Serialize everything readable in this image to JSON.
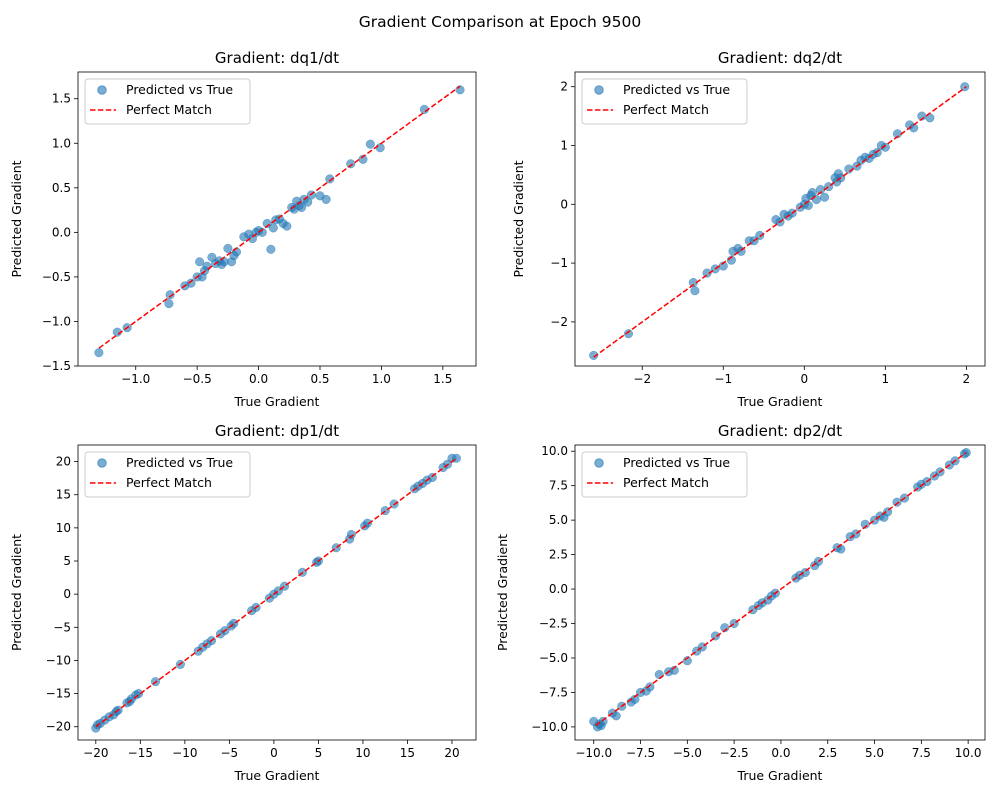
{
  "figure": {
    "suptitle": "Gradient Comparison at Epoch 9500"
  },
  "colors": {
    "points": "#1f77b4",
    "line": "#ff0000"
  },
  "chart_data": [
    {
      "type": "scatter",
      "title": "Gradient: dq1/dt",
      "xlabel": "True Gradient",
      "ylabel": "Predicted Gradient",
      "xlim": [
        -1.47,
        1.77
      ],
      "ylim": [
        -1.5,
        1.8
      ],
      "xticks": [
        -1.0,
        -0.5,
        0.0,
        0.5,
        1.0,
        1.5
      ],
      "xtick_labels": [
        "−1.0",
        "−0.5",
        "0.0",
        "0.5",
        "1.0",
        "1.5"
      ],
      "yticks": [
        -1.5,
        -1.0,
        -0.5,
        0.0,
        0.5,
        1.0,
        1.5
      ],
      "ytick_labels": [
        "−1.5",
        "−1.0",
        "−0.5",
        "0.0",
        "0.5",
        "1.0",
        "1.5"
      ],
      "legend": [
        "Predicted vs True",
        "Perfect Match"
      ],
      "legend_position": "upper-left",
      "line": {
        "x": [
          -1.3,
          1.64
        ],
        "y": [
          -1.3,
          1.64
        ]
      },
      "x": [
        -1.3,
        -1.15,
        -1.07,
        -0.73,
        -0.72,
        -0.6,
        -0.55,
        -0.5,
        -0.48,
        -0.46,
        -0.44,
        -0.42,
        -0.38,
        -0.35,
        -0.32,
        -0.3,
        -0.28,
        -0.25,
        -0.22,
        -0.2,
        -0.18,
        -0.12,
        -0.08,
        -0.05,
        -0.02,
        0.0,
        0.03,
        0.07,
        0.1,
        0.12,
        0.14,
        0.17,
        0.2,
        0.23,
        0.27,
        0.29,
        0.31,
        0.33,
        0.35,
        0.37,
        0.4,
        0.43,
        0.5,
        0.55,
        0.58,
        0.75,
        0.85,
        0.91,
        0.99,
        1.35,
        1.64
      ],
      "y": [
        -1.35,
        -1.12,
        -1.07,
        -0.8,
        -0.7,
        -0.6,
        -0.57,
        -0.5,
        -0.33,
        -0.5,
        -0.43,
        -0.38,
        -0.28,
        -0.35,
        -0.32,
        -0.36,
        -0.33,
        -0.18,
        -0.33,
        -0.26,
        -0.22,
        -0.05,
        -0.02,
        -0.07,
        0.0,
        0.02,
        0.0,
        0.1,
        -0.19,
        0.05,
        0.14,
        0.15,
        0.1,
        0.07,
        0.28,
        0.26,
        0.35,
        0.3,
        0.28,
        0.37,
        0.34,
        0.42,
        0.41,
        0.37,
        0.6,
        0.77,
        0.82,
        0.99,
        0.95,
        1.38,
        1.6
      ]
    },
    {
      "type": "scatter",
      "title": "Gradient: dq2/dt",
      "xlabel": "True Gradient",
      "ylabel": "Predicted Gradient",
      "xlim": [
        -2.83,
        2.23
      ],
      "ylim": [
        -2.75,
        2.25
      ],
      "xticks": [
        -2,
        -1,
        0,
        1,
        2
      ],
      "xtick_labels": [
        "−2",
        "−1",
        "0",
        "1",
        "2"
      ],
      "yticks": [
        -2,
        -1,
        0,
        1,
        2
      ],
      "ytick_labels": [
        "−2",
        "−1",
        "0",
        "1",
        "2"
      ],
      "legend": [
        "Predicted vs True",
        "Perfect Match"
      ],
      "legend_position": "upper-left",
      "line": {
        "x": [
          -2.6,
          2.0
        ],
        "y": [
          -2.6,
          2.0
        ]
      },
      "x": [
        -2.6,
        -2.17,
        -1.37,
        -1.35,
        -1.2,
        -1.1,
        -1.0,
        -0.9,
        -0.88,
        -0.82,
        -0.78,
        -0.68,
        -0.62,
        -0.55,
        -0.35,
        -0.3,
        -0.25,
        -0.2,
        -0.15,
        -0.05,
        0.0,
        0.02,
        0.05,
        0.08,
        0.1,
        0.15,
        0.2,
        0.25,
        0.3,
        0.38,
        0.4,
        0.42,
        0.45,
        0.55,
        0.65,
        0.7,
        0.75,
        0.8,
        0.85,
        0.9,
        0.95,
        1.0,
        1.15,
        1.3,
        1.35,
        1.45,
        1.55,
        1.98
      ],
      "y": [
        -2.57,
        -2.2,
        -1.33,
        -1.47,
        -1.17,
        -1.1,
        -1.05,
        -0.95,
        -0.8,
        -0.75,
        -0.8,
        -0.62,
        -0.62,
        -0.53,
        -0.26,
        -0.3,
        -0.17,
        -0.2,
        -0.15,
        -0.05,
        0.0,
        0.1,
        -0.02,
        0.15,
        0.2,
        0.08,
        0.25,
        0.12,
        0.3,
        0.45,
        0.38,
        0.52,
        0.45,
        0.6,
        0.65,
        0.75,
        0.8,
        0.78,
        0.85,
        0.88,
        1.0,
        0.97,
        1.2,
        1.35,
        1.3,
        1.5,
        1.47,
        2.0
      ]
    },
    {
      "type": "scatter",
      "title": "Gradient: dp1/dt",
      "xlabel": "True Gradient",
      "ylabel": "Predicted Gradient",
      "xlim": [
        -22.0,
        22.7
      ],
      "ylim": [
        -22.0,
        22.5
      ],
      "xticks": [
        -20,
        -15,
        -10,
        -5,
        0,
        5,
        10,
        15,
        20
      ],
      "xtick_labels": [
        "−20",
        "−15",
        "−10",
        "−5",
        "0",
        "5",
        "10",
        "15",
        "20"
      ],
      "yticks": [
        -20,
        -15,
        -10,
        -5,
        0,
        5,
        10,
        15,
        20
      ],
      "ytick_labels": [
        "−20",
        "−15",
        "−10",
        "−5",
        "0",
        "5",
        "10",
        "15",
        "20"
      ],
      "legend": [
        "Predicted vs True",
        "Perfect Match"
      ],
      "legend_position": "upper-left",
      "line": {
        "x": [
          -20.0,
          20.5
        ],
        "y": [
          -20.0,
          20.5
        ]
      },
      "x": [
        -20.0,
        -19.8,
        -19.5,
        -19.0,
        -18.5,
        -18.0,
        -17.7,
        -17.5,
        -16.5,
        -16.2,
        -16.0,
        -15.5,
        -15.2,
        -13.3,
        -10.5,
        -8.5,
        -8.0,
        -7.5,
        -7.0,
        -6.0,
        -5.5,
        -4.8,
        -4.5,
        -2.5,
        -2.0,
        -0.5,
        0.0,
        0.5,
        1.2,
        3.2,
        4.8,
        5.0,
        7.0,
        8.5,
        8.7,
        10.2,
        10.5,
        12.5,
        13.5,
        15.8,
        16.2,
        16.7,
        17.2,
        17.8,
        19.0,
        19.5,
        20.0,
        20.5
      ],
      "y": [
        -20.2,
        -19.7,
        -19.5,
        -19.0,
        -18.5,
        -18.2,
        -17.7,
        -17.5,
        -16.4,
        -16.2,
        -15.8,
        -15.2,
        -15.0,
        -13.2,
        -10.6,
        -8.6,
        -8.0,
        -7.5,
        -7.0,
        -6.0,
        -5.5,
        -4.8,
        -4.4,
        -2.5,
        -2.0,
        -0.6,
        0.0,
        0.5,
        1.2,
        3.3,
        4.8,
        5.0,
        7.0,
        8.3,
        9.0,
        10.3,
        10.7,
        12.6,
        13.6,
        15.9,
        16.3,
        16.7,
        17.2,
        17.6,
        19.1,
        19.6,
        20.5,
        20.5
      ]
    },
    {
      "type": "scatter",
      "title": "Gradient: dp2/dt",
      "xlabel": "True Gradient",
      "ylabel": "Predicted Gradient",
      "xlim": [
        -11.0,
        10.9
      ],
      "ylim": [
        -10.95,
        10.45
      ],
      "xticks": [
        -10.0,
        -7.5,
        -5.0,
        -2.5,
        0.0,
        2.5,
        5.0,
        7.5,
        10.0
      ],
      "xtick_labels": [
        "−10.0",
        "−7.5",
        "−5.0",
        "−2.5",
        "0.0",
        "2.5",
        "5.0",
        "7.5",
        "10.0"
      ],
      "yticks": [
        -10.0,
        -7.5,
        -5.0,
        -2.5,
        0.0,
        2.5,
        5.0,
        7.5,
        10.0
      ],
      "ytick_labels": [
        "−10.0",
        "−7.5",
        "−5.0",
        "−2.5",
        "0.0",
        "2.5",
        "5.0",
        "7.5",
        "10.0"
      ],
      "legend": [
        "Predicted vs True",
        "Perfect Match"
      ],
      "legend_position": "upper-left",
      "line": {
        "x": [
          -9.9,
          9.9
        ],
        "y": [
          -9.9,
          9.9
        ]
      },
      "x": [
        -10.0,
        -9.8,
        -9.7,
        -9.6,
        -9.5,
        -9.0,
        -8.8,
        -8.5,
        -8.0,
        -7.8,
        -7.5,
        -7.2,
        -7.0,
        -6.5,
        -6.0,
        -5.7,
        -5.0,
        -4.5,
        -4.2,
        -3.5,
        -3.0,
        -2.5,
        -1.5,
        -1.2,
        -1.0,
        -0.7,
        -0.5,
        -0.3,
        0.8,
        1.0,
        1.3,
        1.8,
        2.0,
        3.0,
        3.2,
        3.7,
        4.0,
        4.5,
        5.0,
        5.3,
        5.5,
        5.7,
        6.2,
        6.6,
        7.3,
        7.5,
        7.8,
        8.2,
        8.5,
        9.0,
        9.3,
        9.8,
        9.9
      ],
      "y": [
        -9.6,
        -10.0,
        -9.8,
        -9.9,
        -9.6,
        -9.0,
        -9.2,
        -8.5,
        -8.2,
        -8.0,
        -7.5,
        -7.4,
        -7.1,
        -6.2,
        -6.0,
        -5.9,
        -5.2,
        -4.5,
        -4.2,
        -3.4,
        -2.8,
        -2.5,
        -1.5,
        -1.2,
        -1.0,
        -0.8,
        -0.5,
        -0.3,
        0.8,
        1.0,
        1.2,
        1.7,
        2.0,
        3.0,
        2.9,
        3.8,
        4.0,
        4.7,
        5.0,
        5.3,
        5.2,
        5.6,
        6.3,
        6.6,
        7.4,
        7.6,
        7.8,
        8.2,
        8.5,
        9.0,
        9.3,
        9.8,
        9.9
      ]
    }
  ]
}
